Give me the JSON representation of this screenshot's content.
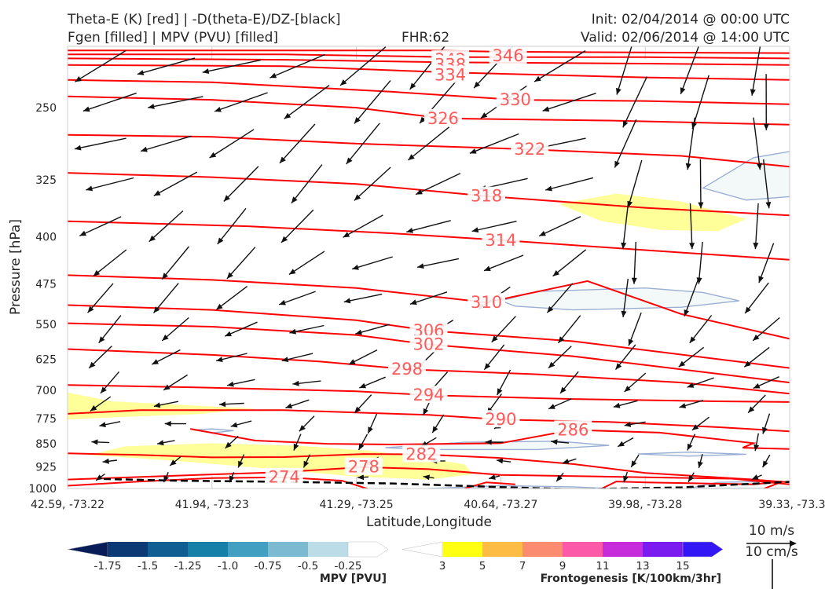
{
  "header": {
    "title_left_1": "Theta-E (K) [red] | -D(theta-E)/DZ-[black]",
    "title_left_2": "Fgen [filled] | MPV (PVU) [filled]",
    "fhr": "FHR:62",
    "init": "Init: 02/04/2014 @ 00:00 UTC",
    "valid": "Valid: 02/06/2014 @ 14:00 UTC"
  },
  "chart_data": {
    "type": "cross-section",
    "ylabel": "Pressure [hPa]",
    "xlabel": "Latitude,Longitude",
    "y_axis": {
      "scale": "log",
      "inverted": true,
      "range": [
        1000,
        200
      ],
      "ticks": [
        "250",
        "325",
        "400",
        "475",
        "550",
        "625",
        "700",
        "775",
        "850",
        "925",
        "1000"
      ]
    },
    "x_axis": {
      "ticks": [
        "42.59, -73.22",
        "41.94, -73.23",
        "41.29, -73.25",
        "40.64, -73.27",
        "39.98, -73.28",
        "39.33, -73.3"
      ]
    },
    "theta_e_contours": {
      "color": "#ff0000",
      "label_color": "#ff5a5a",
      "lines": [
        {
          "value": 346,
          "labeled": true,
          "label_at": [
            0.61,
            207
          ]
        },
        {
          "value": 342,
          "labeled": true,
          "label_at": [
            0.53,
            210
          ]
        },
        {
          "value": 338,
          "labeled": true,
          "label_at": [
            0.53,
            214
          ]
        },
        {
          "value": 334,
          "labeled": true,
          "label_at": [
            0.53,
            222
          ]
        },
        {
          "value": 330,
          "labeled": true,
          "label_at": [
            0.62,
            243
          ]
        },
        {
          "value": 326,
          "labeled": true,
          "label_at": [
            0.52,
            260
          ]
        },
        {
          "value": 322,
          "labeled": true,
          "label_at": [
            0.64,
            291
          ]
        },
        {
          "value": 318,
          "labeled": true,
          "label_at": [
            0.58,
            345
          ]
        },
        {
          "value": 314,
          "labeled": true,
          "label_at": [
            0.6,
            405
          ]
        },
        {
          "value": 310,
          "labeled": true,
          "label_at": [
            0.58,
            508
          ]
        },
        {
          "value": 306,
          "labeled": true,
          "label_at": [
            0.5,
            563
          ]
        },
        {
          "value": 302,
          "labeled": true,
          "label_at": [
            0.5,
            592
          ]
        },
        {
          "value": 298,
          "labeled": true,
          "label_at": [
            0.47,
            648
          ]
        },
        {
          "value": 294,
          "labeled": true,
          "label_at": [
            0.5,
            712
          ]
        },
        {
          "value": 290,
          "labeled": true,
          "label_at": [
            0.6,
            778
          ]
        },
        {
          "value": 286,
          "labeled": true,
          "label_at": [
            0.7,
            808
          ]
        },
        {
          "value": 282,
          "labeled": true,
          "label_at": [
            0.49,
            883
          ]
        },
        {
          "value": 278,
          "labeled": true,
          "label_at": [
            0.41,
            925
          ]
        },
        {
          "value": 274,
          "labeled": true,
          "label_at": [
            0.3,
            960
          ]
        }
      ]
    },
    "stability_dashed_line": {
      "color": "#000000",
      "style": "dashed",
      "near_pressure": 980
    },
    "frontogenesis_fill": {
      "color": "#ffff99",
      "regions": 5
    },
    "mpv_fill": {
      "color": "#f3f9f9",
      "edge": "#9aaed4",
      "regions": 5
    },
    "wind_vectors": {
      "color": "#111111",
      "reference": "10 m/s",
      "reference2": "10 cm/s"
    },
    "colorbars": [
      {
        "title": "MPV [PVU]",
        "labels": [
          "-1.75",
          "-1.5",
          "-1.25",
          "-1.0",
          "-0.75",
          "-0.5",
          "-0.25"
        ],
        "colors": [
          "#081d58",
          "#0b3a74",
          "#115f92",
          "#1680a8",
          "#41a0c1",
          "#7cbad2",
          "#bcdce8",
          "#ffffff"
        ]
      },
      {
        "title": "Frontogenesis [K/100km/3hr]",
        "labels": [
          "3",
          "5",
          "7",
          "9",
          "11",
          "13",
          "15"
        ],
        "colors": [
          "#ffffff",
          "#ffff11",
          "#fdbd44",
          "#fc8c70",
          "#fc5aa8",
          "#c82ddb",
          "#7a1cf0",
          "#3417f5"
        ]
      }
    ]
  }
}
